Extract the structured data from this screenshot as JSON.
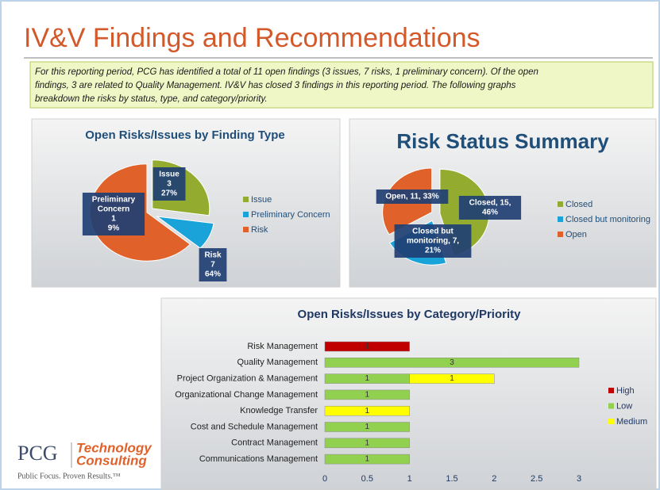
{
  "title": "IV&V Findings and Recommendations",
  "summary": [
    "For this reporting period, PCG has identified a total of 11 open findings (3 issues, 7 risks, 1 preliminary concern).  Of the open",
    "findings, 3 are related to Quality Management. IV&V has closed 3 findings in this reporting period.  The following graphs",
    "breakdown the risks by status, type, and category/priority."
  ],
  "logo": {
    "name": "PCG",
    "line1": "Technology",
    "line2": "Consulting",
    "tagline": "Public Focus. Proven Results.™"
  },
  "chart_data": [
    {
      "type": "pie",
      "title": "Open Risks/Issues by Finding Type",
      "categories": [
        "Issue",
        "Preliminary Concern",
        "Risk"
      ],
      "values": [
        3,
        1,
        7
      ],
      "value_labels": [
        [
          "Issue",
          "3",
          "27%"
        ],
        [
          "Preliminary",
          "Concern",
          "1",
          "9%"
        ],
        [
          "Risk",
          "7",
          "64%"
        ]
      ],
      "colors": [
        "#93ab2e",
        "#1aa3d8",
        "#e0622a"
      ],
      "legend": "right"
    },
    {
      "type": "pie",
      "title": "Risk Status Summary",
      "categories": [
        "Closed",
        "Closed but monitoring",
        "Open"
      ],
      "values": [
        15,
        7,
        11
      ],
      "value_labels": [
        [
          "Closed, 15,",
          "46%"
        ],
        [
          "Closed but",
          "monitoring, 7,",
          "21%"
        ],
        [
          "Open, 11, 33%"
        ]
      ],
      "colors": [
        "#93ab2e",
        "#1aa3d8",
        "#e0622a"
      ],
      "legend": "right"
    },
    {
      "type": "stacked_barh",
      "title": "Open Risks/Issues by Category/Priority",
      "categories": [
        "Risk Management",
        "Quality Management",
        "Project Organization & Management",
        "Organizational Change Management",
        "Knowledge Transfer",
        "Cost and Schedule Management",
        "Contract Management",
        "Communications Management"
      ],
      "series": [
        {
          "name": "High",
          "color": "#c00000",
          "values": [
            1,
            null,
            null,
            null,
            null,
            null,
            null,
            null
          ]
        },
        {
          "name": "Low",
          "color": "#92d050",
          "values": [
            null,
            3,
            1,
            1,
            null,
            1,
            1,
            1
          ]
        },
        {
          "name": "Medium",
          "color": "#ffff00",
          "values": [
            null,
            null,
            1,
            null,
            1,
            null,
            null,
            null
          ]
        }
      ],
      "xlim": [
        0,
        3
      ],
      "xticks": [
        0,
        0.5,
        1,
        1.5,
        2,
        2.5,
        3
      ],
      "legend": "right",
      "grid": false
    }
  ]
}
